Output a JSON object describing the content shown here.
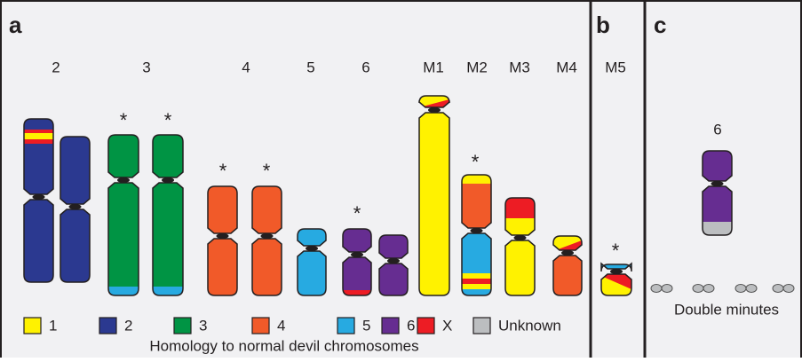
{
  "panels": [
    {
      "label": "a"
    },
    {
      "label": "b"
    },
    {
      "label": "c"
    }
  ],
  "chromosome_labels": [
    "2",
    "3",
    "4",
    "5",
    "6",
    "M1",
    "M2",
    "M3",
    "M4",
    "M5"
  ],
  "asterisks": [
    "*",
    "*",
    "*",
    "*",
    "*",
    "*",
    "*"
  ],
  "legend": {
    "items": [
      "1",
      "2",
      "3",
      "4",
      "5",
      "6",
      "X",
      "Unknown"
    ],
    "caption": "Homology to normal devil chromosomes"
  },
  "double_minutes": {
    "chromosome_label": "6",
    "label": "Double minutes"
  }
}
